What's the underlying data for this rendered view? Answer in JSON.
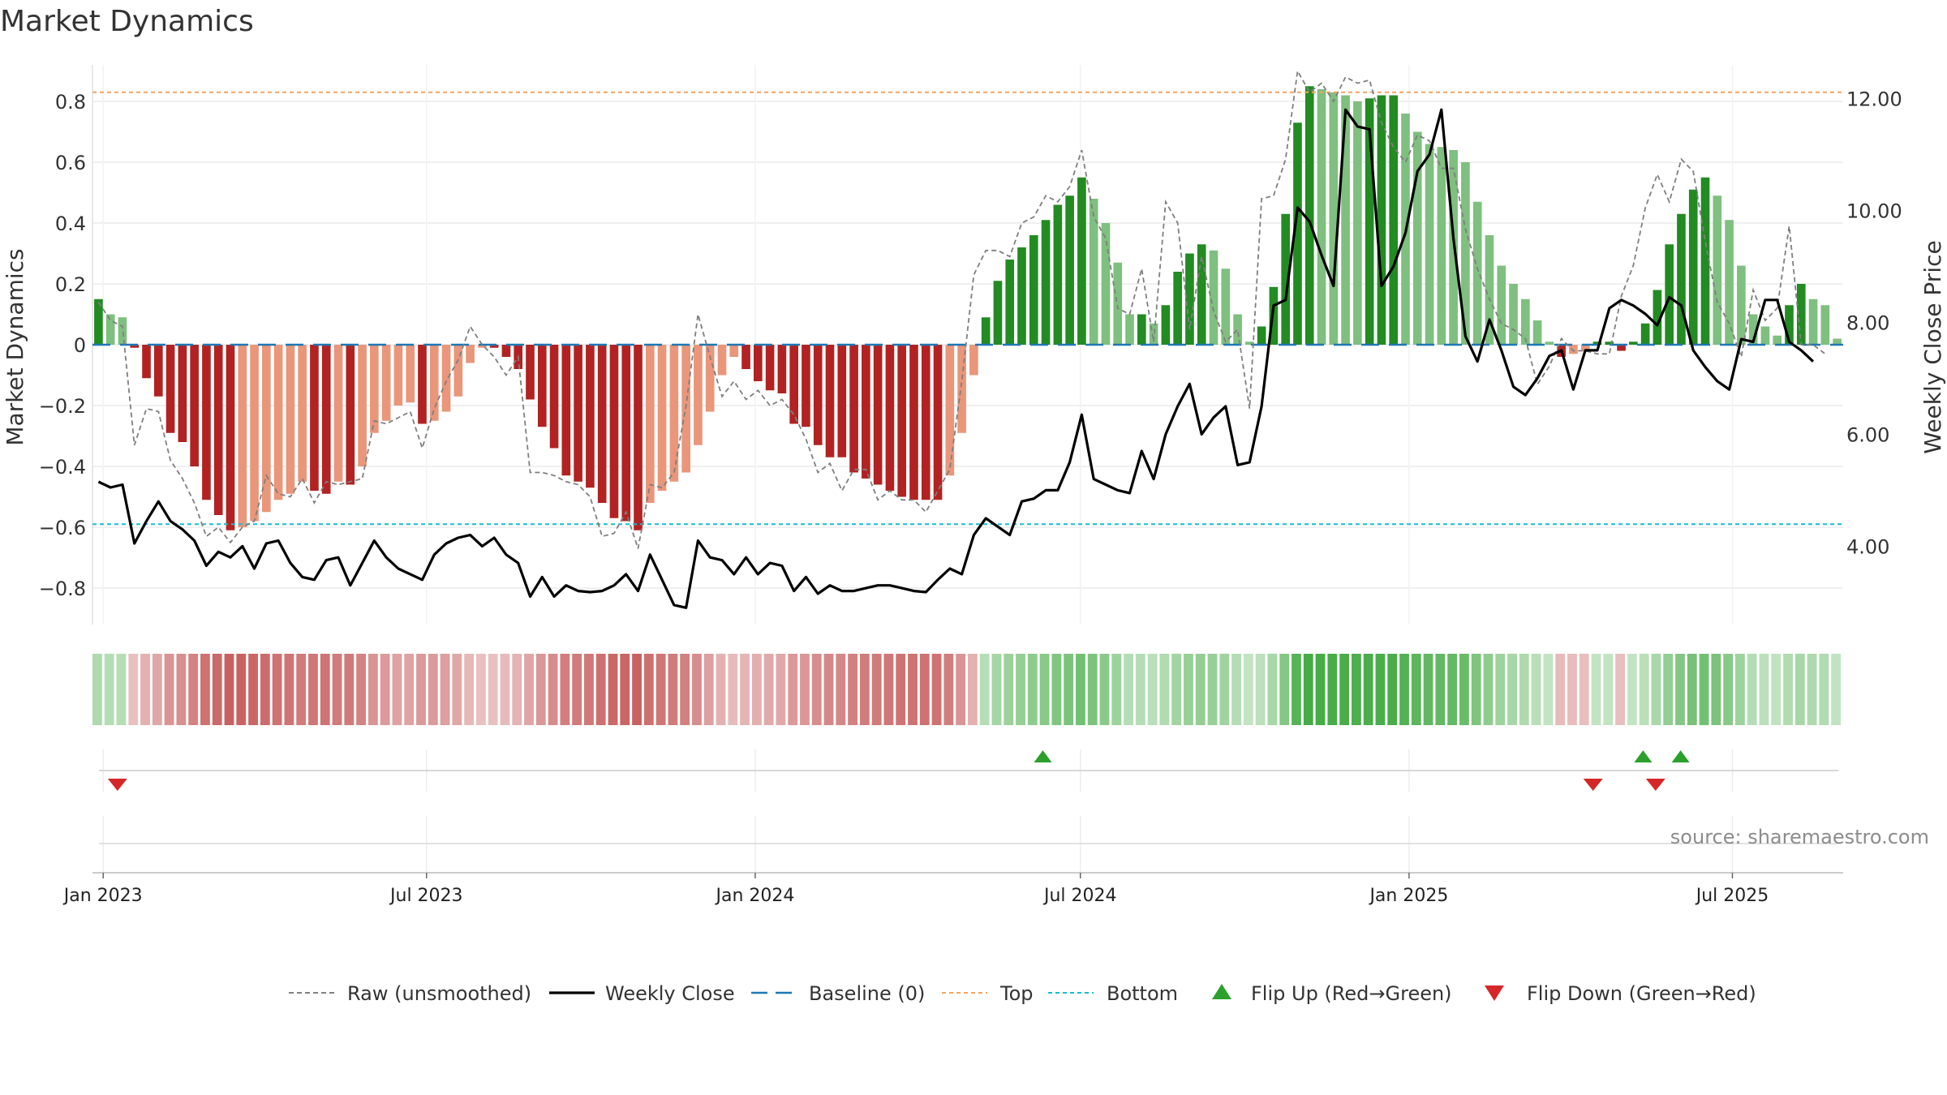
{
  "chart_data": {
    "type": "bar",
    "title": "Market Dynamics",
    "ylabel_left": "Market Dynamics",
    "ylabel_right": "Weekly Close Price",
    "ylim_left": [
      -0.92,
      0.92
    ],
    "ylim_right": [
      2.6,
      12.6
    ],
    "yticks_left": [
      {
        "v": 0.8,
        "label": "0.8"
      },
      {
        "v": 0.6,
        "label": "0.6"
      },
      {
        "v": 0.4,
        "label": "0.4"
      },
      {
        "v": 0.2,
        "label": "0.2"
      },
      {
        "v": 0,
        "label": "0"
      },
      {
        "v": -0.2,
        "label": "−0.2"
      },
      {
        "v": -0.4,
        "label": "−0.4"
      },
      {
        "v": -0.6,
        "label": "−0.6"
      },
      {
        "v": -0.8,
        "label": "−0.8"
      }
    ],
    "yticks_right": [
      {
        "v": 12,
        "label": "12.00"
      },
      {
        "v": 10,
        "label": "10.00"
      },
      {
        "v": 8,
        "label": "8.00"
      },
      {
        "v": 6,
        "label": "6.00"
      },
      {
        "v": 4,
        "label": "4.00"
      }
    ],
    "x_start": "2022-12-26",
    "x_end": "2025-09-01",
    "xticks": [
      {
        "date": "2023-01-01",
        "label": "Jan 2023"
      },
      {
        "date": "2023-07-01",
        "label": "Jul 2023"
      },
      {
        "date": "2024-01-01",
        "label": "Jan 2024"
      },
      {
        "date": "2024-07-01",
        "label": "Jul 2024"
      },
      {
        "date": "2025-01-01",
        "label": "Jan 2025"
      },
      {
        "date": "2025-07-01",
        "label": "Jul 2025"
      }
    ],
    "top_level": 0.83,
    "bottom_level": -0.59,
    "baseline": 0,
    "colors": {
      "strong_green": "#228b22",
      "light_green": "#7fbf7f",
      "strong_red": "#b22222",
      "light_red": "#e9967a",
      "top": "#f4a460",
      "bottom": "#17becf",
      "baseline": "#1f77b4",
      "raw": "#7f7f7f",
      "close": "#000000",
      "flip_up": "#2ca02c",
      "flip_down": "#d62728"
    },
    "bar_values": [
      0.15,
      0.1,
      0.09,
      -0.01,
      -0.11,
      -0.17,
      -0.29,
      -0.32,
      -0.4,
      -0.51,
      -0.56,
      -0.61,
      -0.6,
      -0.58,
      -0.55,
      -0.51,
      -0.49,
      -0.45,
      -0.48,
      -0.49,
      -0.45,
      -0.46,
      -0.4,
      -0.29,
      -0.25,
      -0.2,
      -0.19,
      -0.26,
      -0.25,
      -0.22,
      -0.17,
      -0.06,
      -0.01,
      -0.01,
      -0.04,
      -0.08,
      -0.18,
      -0.27,
      -0.34,
      -0.43,
      -0.45,
      -0.47,
      -0.52,
      -0.57,
      -0.58,
      -0.61,
      -0.52,
      -0.48,
      -0.45,
      -0.42,
      -0.33,
      -0.22,
      -0.1,
      -0.04,
      -0.08,
      -0.12,
      -0.15,
      -0.16,
      -0.26,
      -0.27,
      -0.33,
      -0.37,
      -0.37,
      -0.42,
      -0.44,
      -0.46,
      -0.48,
      -0.5,
      -0.51,
      -0.51,
      -0.51,
      -0.43,
      -0.29,
      -0.1,
      0.09,
      0.21,
      0.28,
      0.32,
      0.36,
      0.41,
      0.46,
      0.49,
      0.55,
      0.48,
      0.4,
      0.27,
      0.1,
      0.1,
      0.07,
      0.13,
      0.24,
      0.3,
      0.33,
      0.31,
      0.25,
      0.1,
      0.01,
      0.06,
      0.19,
      0.43,
      0.73,
      0.85,
      0.84,
      0.83,
      0.82,
      0.8,
      0.81,
      0.82,
      0.82,
      0.76,
      0.7,
      0.66,
      0.65,
      0.64,
      0.6,
      0.47,
      0.36,
      0.26,
      0.2,
      0.15,
      0.08,
      0.01,
      -0.04,
      -0.03,
      -0.02,
      0.01,
      0.01,
      -0.02,
      0.01,
      0.07,
      0.18,
      0.33,
      0.43,
      0.51,
      0.55,
      0.49,
      0.41,
      0.26,
      0.1,
      0.06,
      0.03,
      0.13,
      0.2,
      0.15,
      0.13,
      0.02
    ],
    "raw_values": [
      0.14,
      0.08,
      0.06,
      -0.33,
      -0.21,
      -0.22,
      -0.38,
      -0.44,
      -0.52,
      -0.63,
      -0.6,
      -0.65,
      -0.6,
      -0.58,
      -0.43,
      -0.49,
      -0.5,
      -0.44,
      -0.52,
      -0.45,
      -0.46,
      -0.45,
      -0.44,
      -0.25,
      -0.26,
      -0.24,
      -0.22,
      -0.34,
      -0.21,
      -0.12,
      -0.05,
      0.06,
      0.0,
      -0.04,
      -0.1,
      -0.04,
      -0.42,
      -0.42,
      -0.43,
      -0.45,
      -0.46,
      -0.5,
      -0.63,
      -0.62,
      -0.55,
      -0.67,
      -0.46,
      -0.47,
      -0.42,
      -0.2,
      0.1,
      -0.04,
      -0.17,
      -0.12,
      -0.18,
      -0.15,
      -0.2,
      -0.18,
      -0.23,
      -0.31,
      -0.42,
      -0.39,
      -0.48,
      -0.41,
      -0.41,
      -0.51,
      -0.48,
      -0.51,
      -0.51,
      -0.55,
      -0.48,
      -0.41,
      -0.12,
      0.23,
      0.31,
      0.31,
      0.29,
      0.4,
      0.42,
      0.49,
      0.47,
      0.52,
      0.64,
      0.42,
      0.35,
      0.12,
      0.1,
      0.25,
      0.01,
      0.47,
      0.4,
      0.05,
      0.29,
      0.11,
      0.01,
      0.05,
      -0.21,
      0.48,
      0.49,
      0.61,
      0.9,
      0.83,
      0.86,
      0.8,
      0.88,
      0.86,
      0.87,
      0.73,
      0.65,
      0.6,
      0.69,
      0.67,
      0.58,
      0.58,
      0.38,
      0.25,
      0.15,
      0.07,
      0.05,
      0.02,
      -0.13,
      -0.07,
      0.02,
      -0.02,
      -0.02,
      -0.03,
      -0.03,
      0.16,
      0.26,
      0.45,
      0.56,
      0.47,
      0.61,
      0.57,
      0.34,
      0.14,
      0.07,
      -0.04,
      0.18,
      0.08,
      0.12,
      0.39,
      0.0,
      0.0,
      -0.03
    ],
    "close_values": [
      5.15,
      5.05,
      5.1,
      4.05,
      4.45,
      4.8,
      4.45,
      4.3,
      4.1,
      3.65,
      3.9,
      3.8,
      4.0,
      3.6,
      4.05,
      4.1,
      3.7,
      3.45,
      3.4,
      3.75,
      3.8,
      3.3,
      3.7,
      4.1,
      3.8,
      3.6,
      3.5,
      3.4,
      3.85,
      4.05,
      4.15,
      4.2,
      4.0,
      4.15,
      3.85,
      3.7,
      3.1,
      3.45,
      3.1,
      3.3,
      3.2,
      3.18,
      3.2,
      3.3,
      3.5,
      3.2,
      3.85,
      3.4,
      2.95,
      2.9,
      4.1,
      3.8,
      3.75,
      3.5,
      3.8,
      3.5,
      3.7,
      3.65,
      3.2,
      3.45,
      3.15,
      3.3,
      3.2,
      3.2,
      3.25,
      3.3,
      3.3,
      3.25,
      3.2,
      3.18,
      3.4,
      3.6,
      3.5,
      4.2,
      4.5,
      4.35,
      4.2,
      4.8,
      4.85,
      5.0,
      5.0,
      5.5,
      6.35,
      5.2,
      5.1,
      5.0,
      4.95,
      5.7,
      5.2,
      6.0,
      6.5,
      6.9,
      6.0,
      6.3,
      6.5,
      5.45,
      5.5,
      6.5,
      8.3,
      8.4,
      10.05,
      9.8,
      9.2,
      8.65,
      11.8,
      11.5,
      11.45,
      8.65,
      9.0,
      9.6,
      10.7,
      11.0,
      11.8,
      9.5,
      7.75,
      7.3,
      8.05,
      7.5,
      6.85,
      6.7,
      7.0,
      7.4,
      7.5,
      6.8,
      7.5,
      7.5,
      8.25,
      8.4,
      8.3,
      8.15,
      7.95,
      8.45,
      8.3,
      7.5,
      7.2,
      6.95,
      6.8,
      7.7,
      7.65,
      8.4,
      8.4,
      7.65,
      7.5,
      7.3
    ],
    "flip_up": [
      {
        "date": "2024-06-10",
        "label": "Flip Up"
      },
      {
        "date": "2025-05-12",
        "label": "Flip Up"
      },
      {
        "date": "2025-06-02",
        "label": "Flip Up"
      }
    ],
    "flip_down": [
      {
        "date": "2023-01-09",
        "label": "Flip Down"
      },
      {
        "date": "2025-04-14",
        "label": "Flip Down"
      },
      {
        "date": "2025-05-19",
        "label": "Flip Down"
      }
    ],
    "legend": [
      {
        "key": "raw",
        "label": "Raw (unsmoothed)"
      },
      {
        "key": "close",
        "label": "Weekly Close"
      },
      {
        "key": "baseline",
        "label": "Baseline (0)"
      },
      {
        "key": "top",
        "label": "Top"
      },
      {
        "key": "bottom",
        "label": "Bottom"
      },
      {
        "key": "flip_up",
        "label": "Flip Up (Red→Green)"
      },
      {
        "key": "flip_down",
        "label": "Flip Down (Green→Red)"
      }
    ],
    "legend_position": "bottom-center",
    "source": "source: sharemaestro.com"
  }
}
